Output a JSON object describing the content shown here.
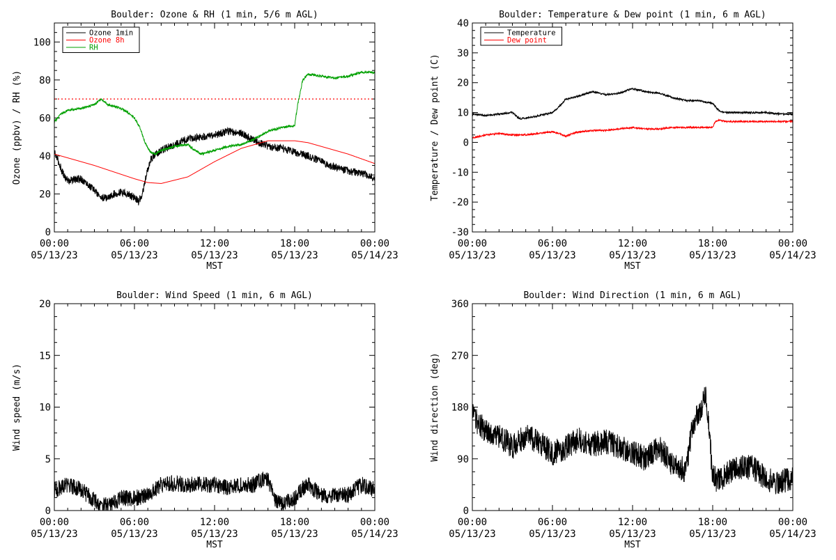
{
  "chart_data": [
    {
      "type": "line",
      "title": "Boulder: Ozone & RH (1 min, 5/6 m AGL)",
      "ylabel": "Ozone (ppbv) / RH (%)",
      "xlabel": "MST",
      "x_ticks": [
        {
          "t": "00:00",
          "d": "05/13/23"
        },
        {
          "t": "06:00",
          "d": "05/13/23"
        },
        {
          "t": "12:00",
          "d": "05/13/23"
        },
        {
          "t": "18:00",
          "d": "05/13/23"
        },
        {
          "t": "00:00",
          "d": "05/14/23"
        }
      ],
      "xlim": [
        0,
        24
      ],
      "ylim": [
        0,
        110
      ],
      "yticks": [
        0,
        20,
        40,
        60,
        80,
        100
      ],
      "reference_line": {
        "y": 70,
        "color": "#ff0000",
        "style": "dotted"
      },
      "legend_position": "top-left",
      "series": [
        {
          "name": "Ozone 1min",
          "color": "#000000",
          "noise": 2.0,
          "x": [
            0,
            0.3,
            0.7,
            1,
            2,
            2.5,
            3,
            3.5,
            4,
            4.5,
            5,
            5.5,
            6,
            6.3,
            6.6,
            6.9,
            7.2,
            7.6,
            8,
            9,
            10,
            11,
            12,
            13,
            14,
            15,
            16,
            17,
            18,
            19,
            20,
            21,
            22,
            23,
            24
          ],
          "y": [
            42,
            37,
            30,
            27,
            28,
            25,
            22,
            18,
            18,
            20,
            21,
            20,
            18,
            16,
            20,
            30,
            38,
            41,
            43,
            46,
            49,
            50,
            51,
            53,
            52,
            48,
            45,
            44,
            42,
            40,
            37,
            34,
            32,
            31,
            28
          ]
        },
        {
          "name": "Ozone 8h",
          "color": "#ff0000",
          "noise": 0,
          "x": [
            0,
            3,
            6,
            7,
            8,
            10,
            12,
            14,
            16,
            17,
            18,
            19,
            20,
            22,
            24
          ],
          "y": [
            41,
            35,
            28,
            26,
            25.5,
            29,
            37,
            44,
            48,
            48,
            48,
            47,
            45,
            41,
            36
          ]
        },
        {
          "name": "RH",
          "color": "#00a000",
          "noise": 0.6,
          "x": [
            0,
            0.5,
            1,
            2,
            3,
            3.5,
            4,
            4.5,
            5,
            5.5,
            6,
            6.4,
            6.8,
            7.2,
            7.6,
            8,
            9,
            10,
            10.5,
            11,
            12,
            13,
            14,
            15,
            16,
            17,
            18,
            18.2,
            18.6,
            19,
            20,
            21,
            22,
            23,
            24
          ],
          "y": [
            58,
            62,
            64,
            65,
            67,
            70,
            67,
            66,
            65,
            63,
            60,
            55,
            47,
            42,
            41,
            43,
            45,
            46,
            43,
            41,
            43,
            45,
            46,
            49,
            53,
            55,
            56,
            66,
            80,
            83,
            82,
            81,
            82,
            84,
            84
          ]
        }
      ]
    },
    {
      "type": "line",
      "title": "Boulder: Temperature & Dew point (1 min, 6 m AGL)",
      "ylabel": "Temperature / Dew point (C)",
      "xlabel": "MST",
      "x_ticks": [
        {
          "t": "00:00",
          "d": "05/13/23"
        },
        {
          "t": "06:00",
          "d": "05/13/23"
        },
        {
          "t": "12:00",
          "d": "05/13/23"
        },
        {
          "t": "18:00",
          "d": "05/13/23"
        },
        {
          "t": "00:00",
          "d": "05/14/23"
        }
      ],
      "xlim": [
        0,
        24
      ],
      "ylim": [
        -30,
        40
      ],
      "yticks": [
        -30,
        -20,
        -10,
        0,
        10,
        20,
        30,
        40
      ],
      "legend_position": "top-left",
      "series": [
        {
          "name": "Temperature",
          "color": "#000000",
          "noise": 0.3,
          "x": [
            0,
            1,
            2,
            3,
            3.5,
            4,
            5,
            6,
            6.5,
            7,
            8,
            9,
            10,
            11,
            12,
            13,
            14,
            15,
            16,
            17,
            18,
            18.5,
            19,
            20,
            21,
            22,
            23,
            24
          ],
          "y": [
            9.5,
            9,
            9.5,
            10,
            8,
            8,
            9,
            10,
            12,
            14.5,
            15.5,
            17,
            16,
            16.5,
            18,
            17,
            16.5,
            15,
            14,
            14,
            13,
            10.5,
            10,
            10,
            10,
            10,
            9.5,
            9.5
          ]
        },
        {
          "name": "Dew point",
          "color": "#ff0000",
          "noise": 0.25,
          "x": [
            0,
            1,
            2,
            3,
            4,
            5,
            6,
            6.5,
            7,
            7.5,
            8,
            9,
            10,
            11,
            12,
            13,
            14,
            15,
            16,
            17,
            18,
            18.2,
            18.5,
            19,
            20,
            21,
            22,
            23,
            24
          ],
          "y": [
            1.5,
            2.5,
            3,
            2.5,
            2.5,
            3,
            3.5,
            3,
            2,
            3,
            3.5,
            4,
            4,
            4.5,
            5,
            4.5,
            4.5,
            5,
            5,
            5,
            5,
            7,
            7.5,
            7,
            7,
            7,
            7,
            7,
            7
          ]
        }
      ]
    },
    {
      "type": "line",
      "title": "Boulder: Wind Speed (1 min, 6 m AGL)",
      "ylabel": "Wind speed (m/s)",
      "xlabel": "MST",
      "x_ticks": [
        {
          "t": "00:00",
          "d": "05/13/23"
        },
        {
          "t": "06:00",
          "d": "05/13/23"
        },
        {
          "t": "12:00",
          "d": "05/13/23"
        },
        {
          "t": "18:00",
          "d": "05/13/23"
        },
        {
          "t": "00:00",
          "d": "05/14/23"
        }
      ],
      "xlim": [
        0,
        24
      ],
      "ylim": [
        0,
        20
      ],
      "yticks": [
        0,
        5,
        10,
        15,
        20
      ],
      "series": [
        {
          "name": "",
          "color": "#000000",
          "noise": 0.8,
          "x": [
            0,
            1,
            2,
            3,
            3.5,
            4,
            4.5,
            5,
            6,
            7,
            8,
            9,
            10,
            11,
            12,
            13,
            14,
            15,
            15.5,
            16,
            16.5,
            17,
            18,
            18.5,
            19,
            20,
            21,
            22,
            23,
            24
          ],
          "y": [
            2,
            2.5,
            2,
            1,
            0.5,
            0.5,
            0.8,
            1.2,
            1.2,
            1.5,
            2.5,
            2.6,
            2.5,
            2.5,
            2.5,
            2.2,
            2.5,
            2.5,
            3,
            3,
            1,
            0.6,
            1.2,
            2,
            2.6,
            1.5,
            1.5,
            1.5,
            2.5,
            2
          ]
        }
      ]
    },
    {
      "type": "line",
      "title": "Boulder: Wind Direction (1 min, 6 m AGL)",
      "ylabel": "Wind direction (deg)",
      "xlabel": "MST",
      "x_ticks": [
        {
          "t": "00:00",
          "d": "05/13/23"
        },
        {
          "t": "06:00",
          "d": "05/13/23"
        },
        {
          "t": "12:00",
          "d": "05/13/23"
        },
        {
          "t": "18:00",
          "d": "05/13/23"
        },
        {
          "t": "00:00",
          "d": "05/14/23"
        }
      ],
      "xlim": [
        0,
        24
      ],
      "ylim": [
        0,
        360
      ],
      "yticks": [
        0,
        90,
        180,
        270,
        360
      ],
      "series": [
        {
          "name": "",
          "color": "#000000",
          "noise": 22,
          "x": [
            0,
            0.5,
            1,
            2,
            3,
            4,
            5,
            6,
            7,
            8,
            9,
            10,
            11,
            12,
            13,
            14,
            15,
            16,
            16.5,
            17,
            17.5,
            18,
            18.5,
            19,
            20,
            21,
            22,
            23,
            24
          ],
          "y": [
            165,
            150,
            140,
            130,
            110,
            130,
            120,
            100,
            110,
            125,
            115,
            120,
            110,
            100,
            90,
            110,
            80,
            70,
            150,
            170,
            200,
            60,
            50,
            65,
            75,
            75,
            55,
            50,
            55
          ]
        }
      ]
    }
  ]
}
